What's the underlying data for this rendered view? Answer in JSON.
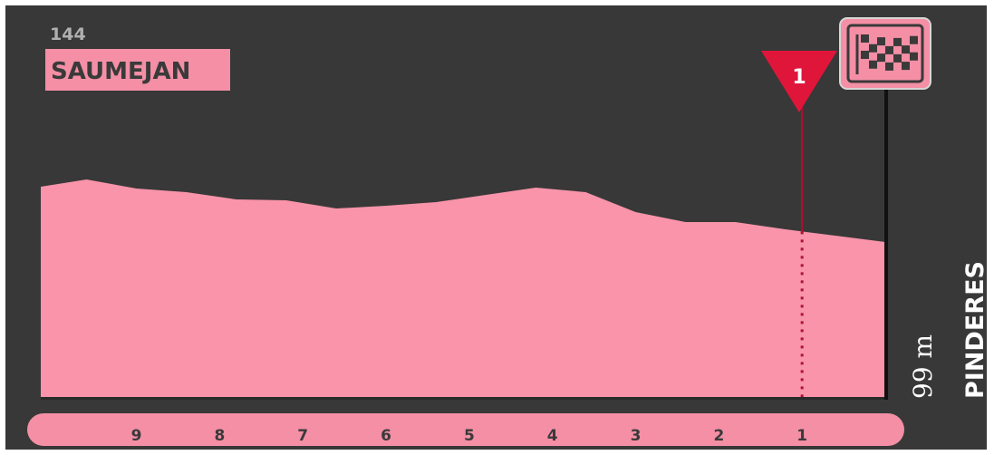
{
  "start": {
    "km": "144",
    "name": "SAUMEJAN"
  },
  "finish": {
    "name": "PINDERES",
    "altitude_label": "99 m"
  },
  "marker": {
    "label": "1",
    "km_to_go": 1
  },
  "colors": {
    "background": "#383838",
    "profile_fill": "#f994aa",
    "label_fill": "#f48fa6",
    "marker": "#e0153a",
    "dark_text": "#3a3a3a"
  },
  "icons": {
    "finish": "checkered-flag-icon",
    "marker": "red-triangle-marker-icon"
  },
  "chart_data": {
    "type": "area",
    "title": "",
    "xlabel": "",
    "ylabel": "",
    "x_direction": "km to go, decreasing left to right",
    "x_ticks": [
      9,
      8,
      7,
      6,
      5,
      4,
      3,
      2,
      1
    ],
    "xlim": [
      10.15,
      0
    ],
    "ylim": [
      0,
      243
    ],
    "x": [
      10.15,
      9.6,
      9.0,
      8.4,
      7.8,
      7.2,
      6.6,
      6.0,
      5.4,
      4.8,
      4.2,
      3.6,
      3.0,
      2.4,
      1.8,
      1.2,
      0.6,
      0.0
    ],
    "y": [
      234,
      242,
      232,
      228,
      220,
      219,
      210,
      213,
      217,
      225,
      233,
      228,
      206,
      195,
      195,
      187,
      180,
      173
    ],
    "series": [
      {
        "values": [
          234,
          242,
          232,
          228,
          220,
          219,
          210,
          213,
          217,
          225,
          233,
          228,
          206,
          195,
          195,
          187,
          180,
          173
        ]
      }
    ],
    "grid": false,
    "legend": "none"
  }
}
